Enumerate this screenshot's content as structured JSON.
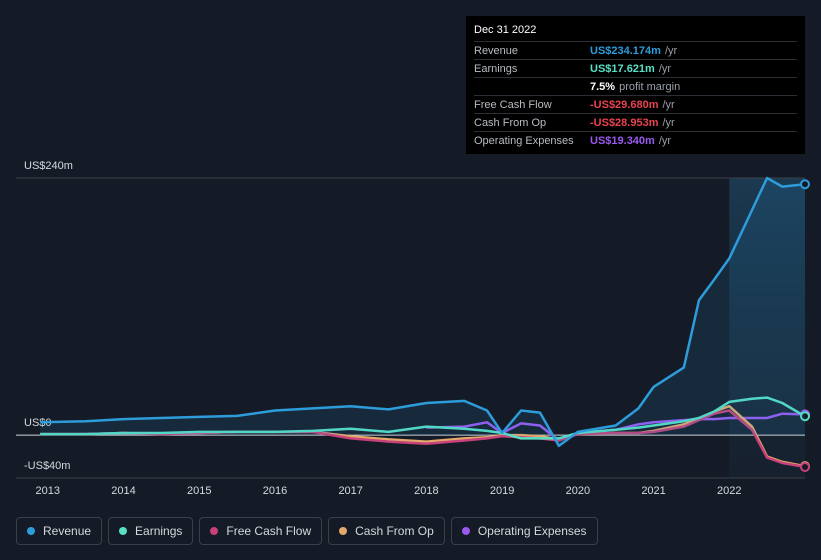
{
  "chart_data": {
    "type": "line",
    "x": [
      2012.9,
      2013.5,
      2014,
      2014.5,
      2015,
      2015.5,
      2016,
      2016.5,
      2017,
      2017.5,
      2018,
      2018.5,
      2018.8,
      2019,
      2019.25,
      2019.5,
      2019.75,
      2020,
      2020.5,
      2020.8,
      2021,
      2021.4,
      2021.6,
      2021.8,
      2022,
      2022.3,
      2022.5,
      2022.7,
      2023.0
    ],
    "series": [
      {
        "name": "Revenue",
        "color": "#2d9cdb",
        "values": [
          12,
          13,
          15,
          16,
          17,
          18,
          23,
          25,
          27,
          24,
          30,
          32,
          23,
          2,
          23,
          21,
          -10,
          3,
          9,
          25,
          45,
          63,
          126,
          145,
          165,
          210,
          240,
          232,
          234.174
        ]
      },
      {
        "name": "Earnings",
        "color": "#58e0c4",
        "values": [
          1,
          1,
          2,
          2,
          3,
          3,
          3,
          4,
          6,
          3,
          8,
          6,
          4,
          2,
          -3,
          -3,
          -3,
          2,
          5,
          7,
          9,
          13,
          16,
          22,
          31,
          34,
          35,
          30,
          17.621
        ]
      },
      {
        "name": "Free Cash Flow",
        "color": "#c7417a",
        "values": [
          1,
          1,
          2,
          1,
          2,
          3,
          3,
          3,
          -3,
          -6,
          -8,
          -5,
          -3,
          -1,
          -2,
          -3,
          -5,
          1,
          2,
          2,
          3,
          8,
          14,
          20,
          23,
          5,
          -21,
          -26,
          -29.68
        ]
      },
      {
        "name": "Cash From Op",
        "color": "#e3a96a",
        "values": [
          1,
          1,
          2,
          1,
          2,
          3,
          3,
          3,
          -1,
          -4,
          -6,
          -3,
          -2,
          0,
          0,
          -1,
          -4,
          1,
          2,
          2,
          4,
          10,
          16,
          22,
          27,
          8,
          -20,
          -25,
          -28.953
        ]
      },
      {
        "name": "Operating Expenses",
        "color": "#9b59f0",
        "values": [
          null,
          null,
          null,
          null,
          null,
          null,
          null,
          null,
          null,
          null,
          7,
          8,
          12,
          2,
          11,
          9,
          -5,
          2,
          5,
          10,
          12,
          14,
          15,
          15,
          16,
          16,
          16,
          20,
          19.34
        ]
      }
    ],
    "xlim": [
      2012.58,
      2023.0
    ],
    "xticks": [
      2013,
      2014,
      2015,
      2016,
      2017,
      2018,
      2019,
      2020,
      2021,
      2022
    ],
    "ylim": [
      -40,
      240
    ],
    "yticks": [
      {
        "value": -40,
        "label": "-US$40m"
      },
      {
        "value": 0,
        "label": "US$0"
      },
      {
        "value": 240,
        "label": "US$240m"
      }
    ],
    "highlight_xlim": [
      2022,
      2023.0
    ],
    "grid": true,
    "tooltip": {
      "date": "Dec 31 2022",
      "rows": [
        {
          "label": "Revenue",
          "value": "US$234.174m",
          "unit": "/yr",
          "color": "#2d9cdb"
        },
        {
          "label": "Earnings",
          "value": "US$17.621m",
          "unit": "/yr",
          "color": "#58e0c4"
        },
        {
          "label": "",
          "value": "7.5%",
          "unit": "profit margin",
          "color": "#ffffff"
        },
        {
          "label": "Free Cash Flow",
          "value": "-US$29.680m",
          "unit": "/yr",
          "color": "#e8434f"
        },
        {
          "label": "Cash From Op",
          "value": "-US$28.953m",
          "unit": "/yr",
          "color": "#e8434f"
        },
        {
          "label": "Operating Expenses",
          "value": "US$19.340m",
          "unit": "/yr",
          "color": "#9b59f0"
        }
      ]
    }
  }
}
